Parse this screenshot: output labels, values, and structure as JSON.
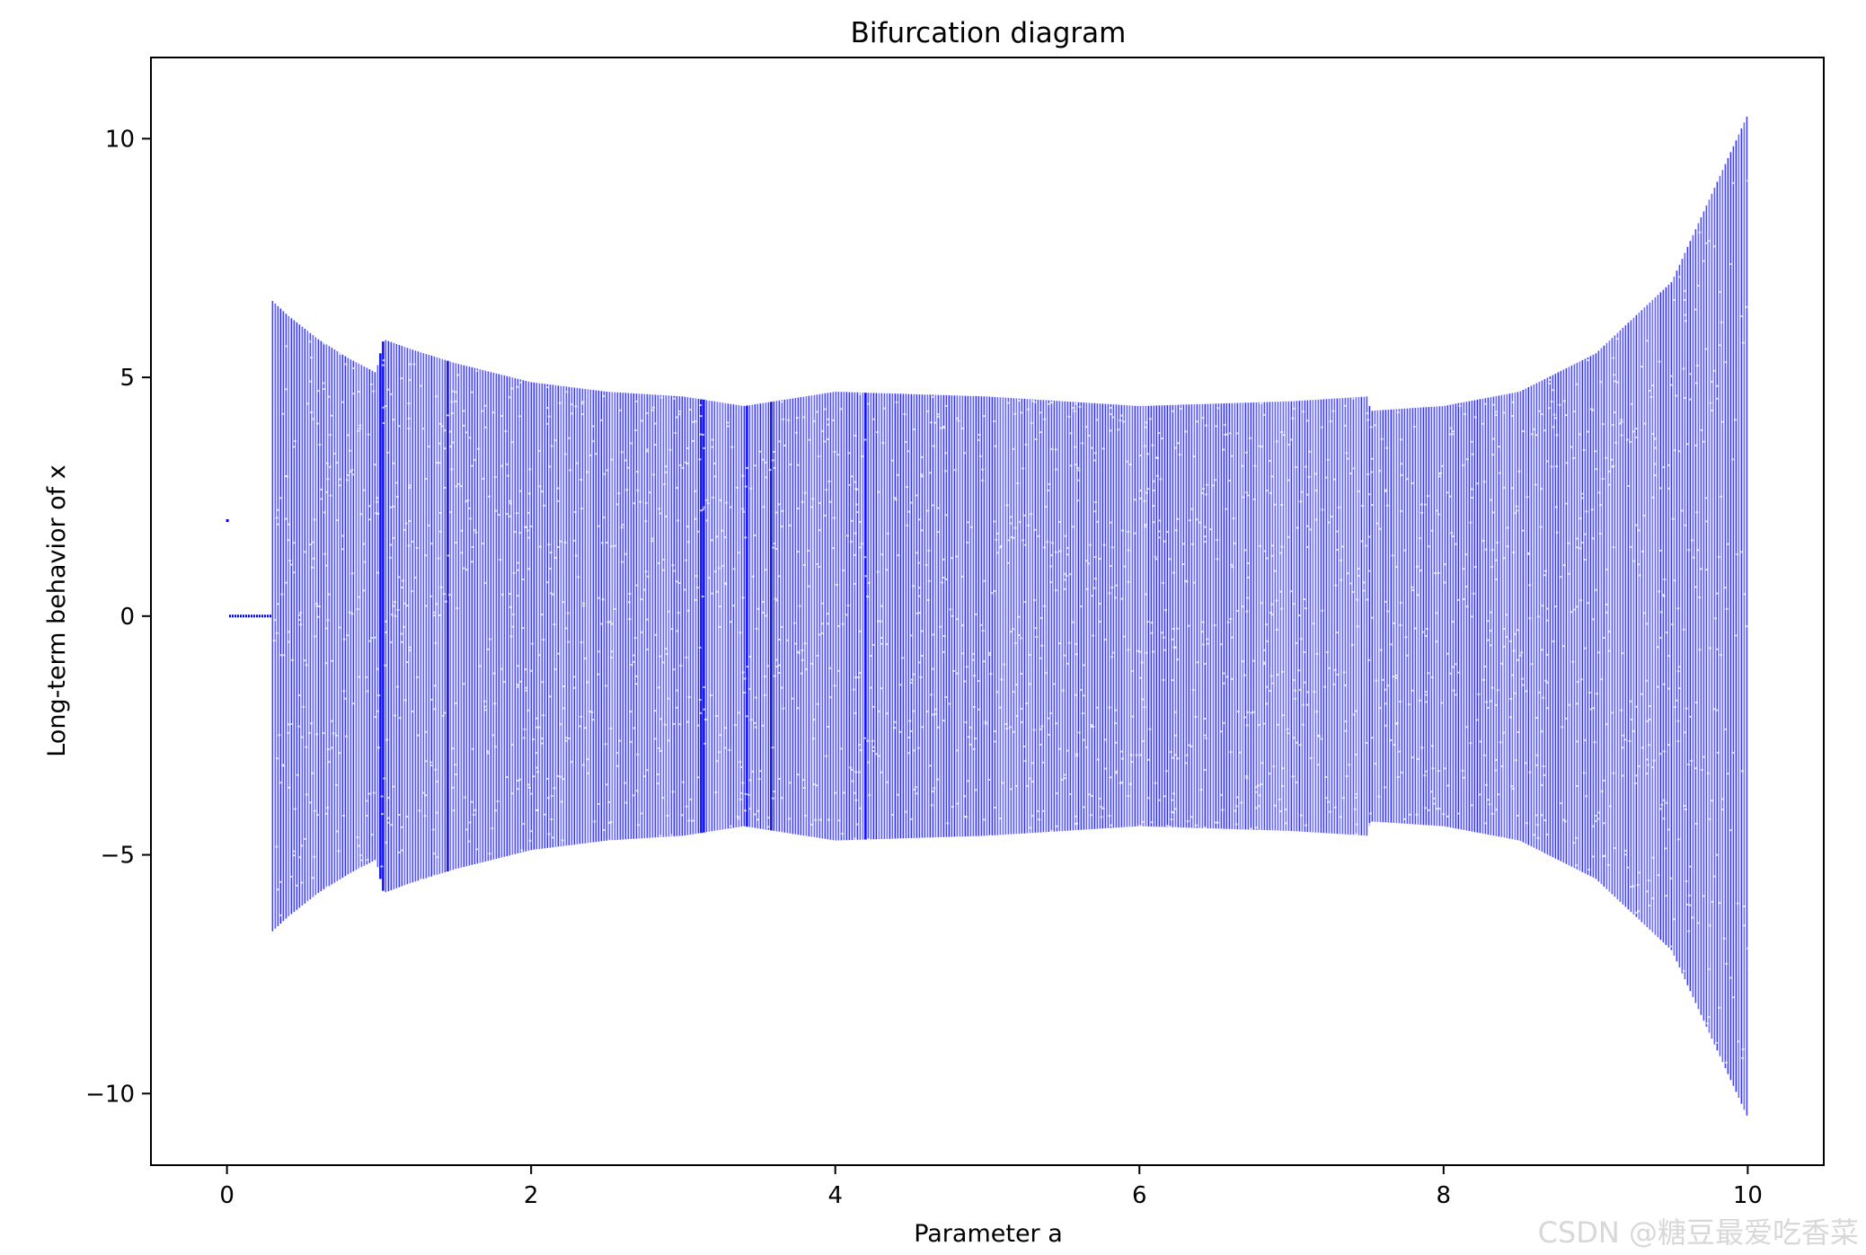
{
  "chart_data": {
    "type": "scatter",
    "title": "Bifurcation diagram",
    "xlabel": "Parameter a",
    "ylabel": "Long-term behavior of x",
    "xlim": [
      -0.5,
      10.5
    ],
    "ylim": [
      -11.5,
      11.7
    ],
    "xticks": [
      0,
      2,
      4,
      6,
      8,
      10
    ],
    "xtick_labels": [
      "0",
      "2",
      "4",
      "6",
      "8",
      "10"
    ],
    "yticks": [
      -10,
      -5,
      0,
      5,
      10
    ],
    "ytick_labels": [
      "−10",
      "−5",
      "0",
      "5",
      "10"
    ],
    "grid": false,
    "marker_color": "#0000ff",
    "envelope": {
      "a": [
        0.3,
        0.4,
        0.6,
        0.8,
        0.98,
        1.03,
        1.2,
        1.5,
        2.0,
        2.5,
        3.0,
        3.4,
        4.0,
        5.0,
        6.0,
        7.0,
        7.5,
        7.52,
        8.0,
        8.5,
        9.0,
        9.5,
        10.0
      ],
      "x_max": [
        6.6,
        6.3,
        5.8,
        5.4,
        5.1,
        5.8,
        5.6,
        5.3,
        4.9,
        4.7,
        4.6,
        4.4,
        4.7,
        4.6,
        4.4,
        4.5,
        4.6,
        4.3,
        4.4,
        4.7,
        5.5,
        7.0,
        10.5
      ]
    },
    "fixed_points": [
      {
        "a_start": 0.0,
        "a_end": 0.0,
        "x": 2.0
      },
      {
        "a_start": 0.02,
        "a_end": 0.28,
        "x": 0.0
      }
    ],
    "period_windows_a": [
      1.02,
      1.45,
      3.13,
      3.42,
      3.58,
      4.2
    ],
    "watermark": "CSDN @糖豆最爱吃香菜"
  }
}
